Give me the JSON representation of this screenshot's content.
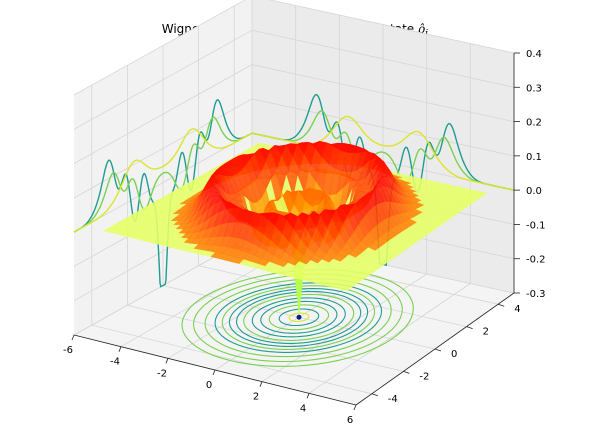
{
  "chart_data": {
    "type": "surface3d",
    "title": "Wigner function of the initial system state",
    "title_symbol": "ρ̂",
    "title_subscript": "i",
    "xlabel": "",
    "ylabel": "",
    "zlabel": "",
    "x_ticks": [
      "-6",
      "-4",
      "-2",
      "0",
      "2",
      "4",
      "6"
    ],
    "y_ticks": [
      "-4",
      "-2",
      "0",
      "2",
      "4"
    ],
    "z_ticks": [
      "-0.3",
      "-0.2",
      "-0.1",
      "0.0",
      "0.1",
      "0.2",
      "0.3",
      "0.4"
    ],
    "xlim": [
      -6,
      6
    ],
    "ylim": [
      -5,
      5
    ],
    "zlim": [
      -0.3,
      0.4
    ],
    "grid": true,
    "surface": {
      "description_values": {
        "ring_radius": 3.0,
        "ring_peak_z": 0.1,
        "center_dip_z": -0.3,
        "flat_level_z": 0.0
      },
      "colormap": "jet"
    },
    "projections": {
      "contour_floor_z": -0.3,
      "side_x": -6,
      "back_y": 5,
      "colormap": "viridis"
    }
  },
  "colors": {
    "pane_left": "#f2f2f2",
    "pane_back": "#ebebeb",
    "pane_floor": "#f4f4f4",
    "grid": "#d6d6d6",
    "flat_sheet": "#e6ff66",
    "ring_outer": "#d83a00",
    "ring_inner": "#ff9c00",
    "projection_teal": "#1f9d8f",
    "projection_green": "#7ad151",
    "projection_yellow": "#d9e62b",
    "dip": "#081d8f"
  }
}
